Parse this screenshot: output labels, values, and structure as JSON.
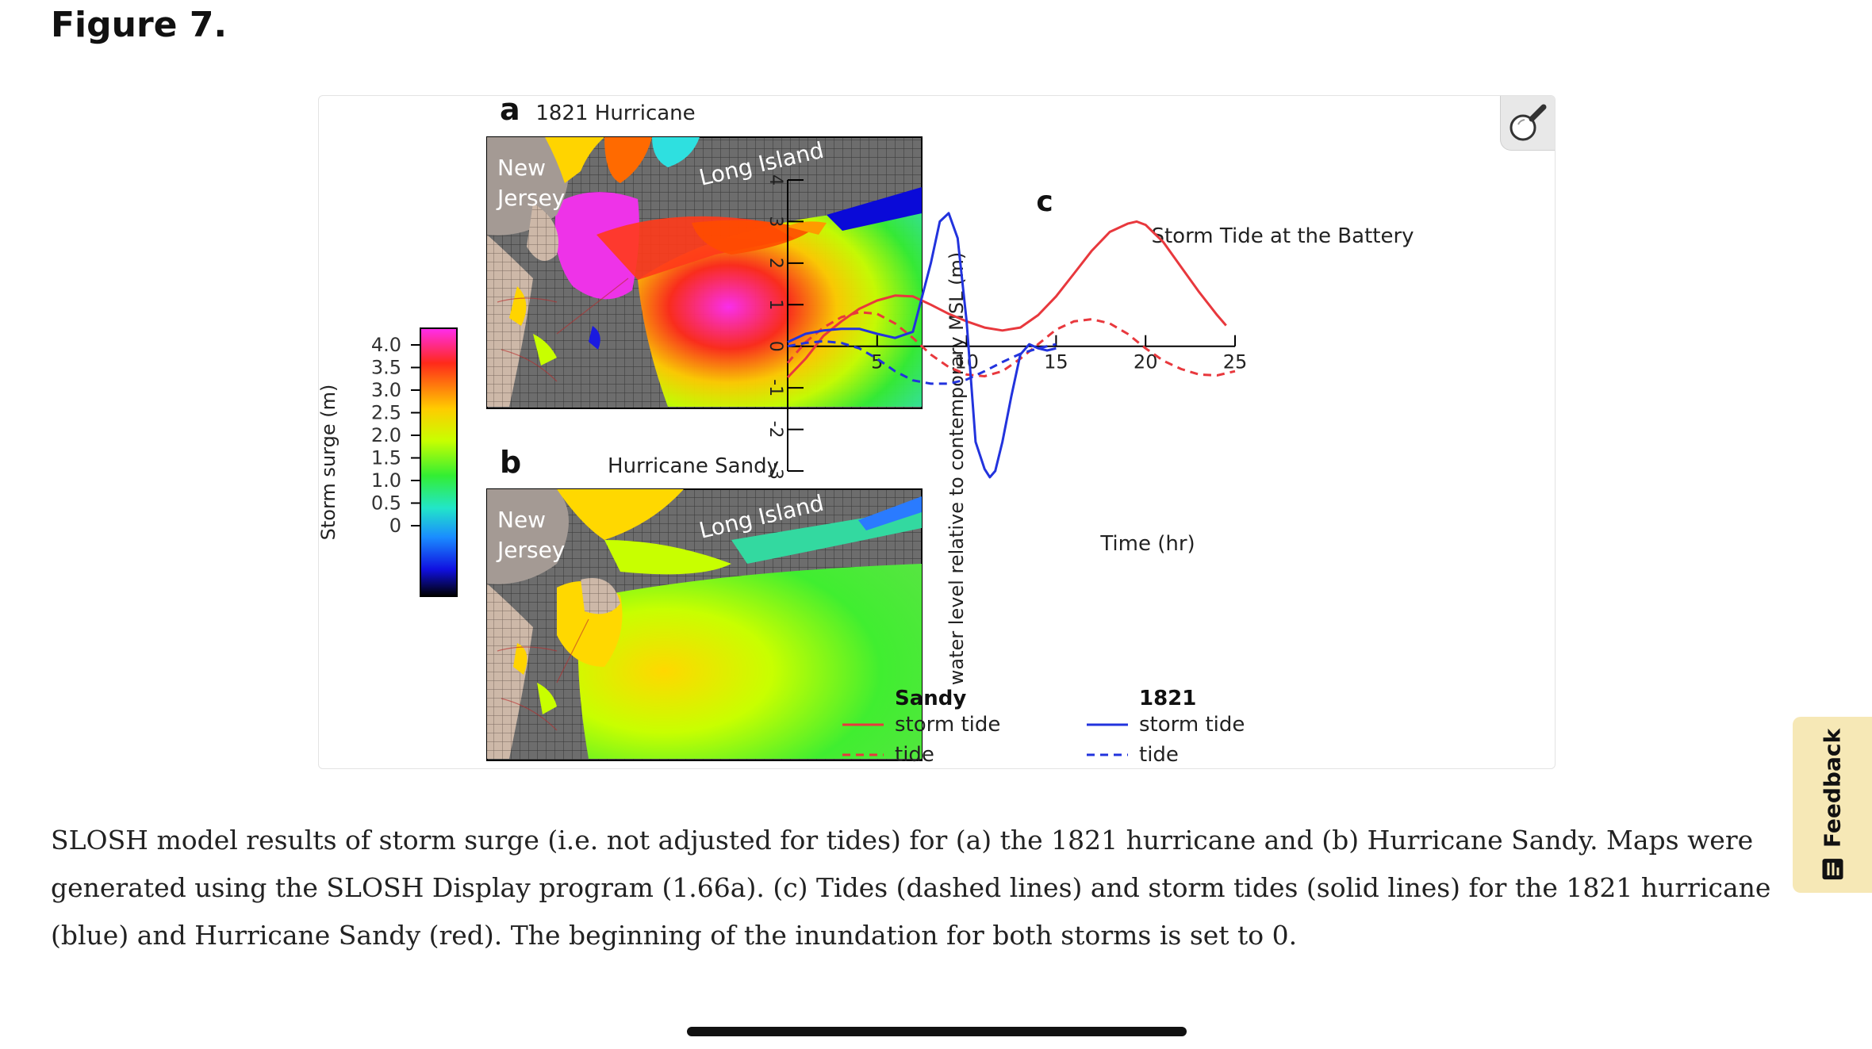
{
  "page": {
    "heading": "Figure 7."
  },
  "figure": {
    "panel_a": {
      "letter": "a",
      "title": "1821 Hurricane",
      "label_nj1": "New",
      "label_nj2": "Jersey",
      "label_li": "Long Island"
    },
    "panel_b": {
      "letter": "b",
      "title": "Hurricane Sandy",
      "label_nj1": "New",
      "label_nj2": "Jersey",
      "label_li": "Long Island"
    },
    "colorbar": {
      "label": "Storm surge (m)",
      "ticks": [
        "4.0",
        "3.5",
        "3.0",
        "2.5",
        "2.0",
        "1.5",
        "1.0",
        "0.5",
        "0"
      ],
      "colors": [
        "#ff2cf0",
        "#ff2a1a",
        "#ffcc00",
        "#c8ff00",
        "#33ee33",
        "#22e6c8",
        "#1a8cff",
        "#1010e0",
        "#000000"
      ]
    },
    "zoom_icon": "magnifier-icon"
  },
  "chart_data": {
    "type": "line",
    "panel_letter": "c",
    "title": "Storm Tide at the Battery",
    "xlabel": "Time (hr)",
    "ylabel": "water level relative to contemporary MSL (m)",
    "xlim": [
      0,
      25
    ],
    "ylim": [
      -3,
      4
    ],
    "x_ticks": [
      5,
      10,
      15,
      20,
      25
    ],
    "y_ticks": [
      4,
      3,
      2,
      1,
      0,
      -1,
      -2,
      -3
    ],
    "grid": false,
    "legend_position": "bottom",
    "legend_groups": [
      {
        "title": "Sandy",
        "entries": [
          "storm tide",
          "tide"
        ]
      },
      {
        "title": "1821",
        "entries": [
          "storm tide",
          "tide"
        ]
      }
    ],
    "colors": {
      "sandy": "#e8383d",
      "h1821": "#2233dd"
    },
    "series": [
      {
        "group": "Sandy",
        "name": "storm tide",
        "color": "#e8383d",
        "dash": "solid",
        "x": [
          0,
          1,
          2,
          3,
          4,
          5,
          6,
          7,
          8,
          9,
          10,
          11,
          12,
          13,
          14,
          15,
          16,
          17,
          18,
          19,
          19.5,
          20,
          21,
          22,
          23,
          24,
          24.5
        ],
        "y": [
          -0.75,
          -0.3,
          0.25,
          0.6,
          0.9,
          1.1,
          1.22,
          1.2,
          1.0,
          0.78,
          0.6,
          0.45,
          0.38,
          0.45,
          0.75,
          1.2,
          1.75,
          2.3,
          2.75,
          2.95,
          3.0,
          2.92,
          2.5,
          1.9,
          1.3,
          0.75,
          0.5
        ]
      },
      {
        "group": "Sandy",
        "name": "tide",
        "color": "#e8383d",
        "dash": "dashed",
        "x": [
          0,
          1,
          2,
          3,
          4,
          5,
          6,
          7,
          8,
          9,
          10,
          11,
          12,
          13,
          14,
          15,
          16,
          17,
          18,
          19,
          20,
          21,
          22,
          23,
          24,
          25
        ],
        "y": [
          -0.4,
          0.1,
          0.45,
          0.7,
          0.82,
          0.78,
          0.55,
          0.2,
          -0.2,
          -0.5,
          -0.68,
          -0.72,
          -0.6,
          -0.3,
          0.05,
          0.4,
          0.6,
          0.65,
          0.55,
          0.3,
          -0.05,
          -0.35,
          -0.55,
          -0.68,
          -0.7,
          -0.6
        ]
      },
      {
        "group": "1821",
        "name": "storm tide",
        "color": "#2233dd",
        "dash": "solid",
        "x": [
          0,
          1,
          2,
          3,
          4,
          5,
          6,
          7,
          8,
          8.5,
          9,
          9.5,
          10,
          10.5,
          11,
          11.3,
          11.6,
          12,
          12.5,
          13,
          13.5,
          14,
          14.5,
          15
        ],
        "y": [
          0.1,
          0.3,
          0.38,
          0.42,
          0.42,
          0.3,
          0.2,
          0.35,
          2.0,
          3.0,
          3.2,
          2.6,
          0.6,
          -2.3,
          -2.95,
          -3.15,
          -3.0,
          -2.3,
          -1.2,
          -0.2,
          0.05,
          -0.05,
          -0.1,
          -0.05
        ]
      },
      {
        "group": "1821",
        "name": "tide",
        "color": "#2233dd",
        "dash": "dashed",
        "x": [
          0,
          1,
          2,
          3,
          4,
          5,
          6,
          7,
          8,
          9,
          10,
          11,
          12,
          13,
          14,
          15
        ],
        "y": [
          0.0,
          0.08,
          0.12,
          0.08,
          -0.05,
          -0.3,
          -0.6,
          -0.82,
          -0.9,
          -0.9,
          -0.8,
          -0.6,
          -0.38,
          -0.18,
          -0.05,
          0.05
        ]
      }
    ]
  },
  "caption": "SLOSH model results of storm surge (i.e. not adjusted for tides) for (a) the 1821 hurricane and (b) Hurricane Sandy. Maps were generated using the SLOSH Display program (1.66a). (c) Tides (dashed lines) and storm tides (solid lines) for the 1821 hurricane (blue) and Hurricane Sandy (red). The beginning of the inundation for both storms is set to 0.",
  "feedback": {
    "label": "Feedback",
    "icon": "feedback-icon"
  }
}
